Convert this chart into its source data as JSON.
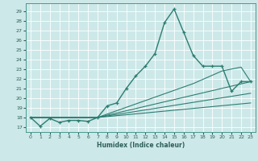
{
  "xlabel": "Humidex (Indice chaleur)",
  "bg_color": "#cde8e8",
  "line_color": "#2d7d72",
  "xlim": [
    -0.5,
    23.5
  ],
  "ylim": [
    16.5,
    29.8
  ],
  "xticks": [
    0,
    1,
    2,
    3,
    4,
    5,
    6,
    7,
    8,
    9,
    10,
    11,
    12,
    13,
    14,
    15,
    16,
    17,
    18,
    19,
    20,
    21,
    22,
    23
  ],
  "yticks": [
    17,
    18,
    19,
    20,
    21,
    22,
    23,
    24,
    25,
    26,
    27,
    28,
    29
  ],
  "main_x": [
    0,
    1,
    2,
    3,
    4,
    5,
    6,
    7,
    8,
    9,
    10,
    11,
    12,
    13,
    14,
    15,
    16,
    17,
    18,
    19,
    20,
    21,
    22,
    23
  ],
  "main_y": [
    18.0,
    17.1,
    17.9,
    17.5,
    17.7,
    17.7,
    17.6,
    18.0,
    19.2,
    19.5,
    21.0,
    22.3,
    23.3,
    24.6,
    27.8,
    29.2,
    26.8,
    24.4,
    23.3,
    23.3,
    23.3,
    20.7,
    21.7,
    21.7
  ],
  "line1_x": [
    0,
    7,
    23
  ],
  "line1_y": [
    18.0,
    18.0,
    21.7
  ],
  "line2_x": [
    0,
    7,
    17,
    20,
    22,
    23
  ],
  "line2_y": [
    18.0,
    18.0,
    21.5,
    22.8,
    23.2,
    21.7
  ],
  "line3_x": [
    0,
    7,
    23
  ],
  "line3_y": [
    18.0,
    18.0,
    20.5
  ],
  "line4_x": [
    0,
    7,
    23
  ],
  "line4_y": [
    18.0,
    18.0,
    19.5
  ]
}
